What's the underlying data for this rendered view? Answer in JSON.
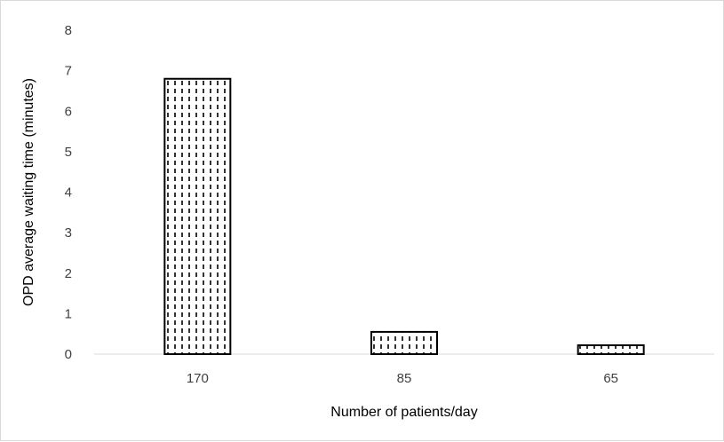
{
  "chart_data": {
    "type": "bar",
    "categories": [
      "170",
      "85",
      "65"
    ],
    "values": [
      6.8,
      0.55,
      0.22
    ],
    "xlabel": "Number of patients/day",
    "ylabel": "OPD average waiting time (minutes)",
    "ylim": [
      0,
      8
    ],
    "yticks": [
      "0",
      "1",
      "2",
      "3",
      "4",
      "5",
      "6",
      "7",
      "8"
    ],
    "grid": false,
    "legend": "none",
    "bar_pattern": "vertical dashed lines",
    "colors": {
      "bar_fill": "#ffffff",
      "bar_stroke": "#000000",
      "axis": "#d9d9d9"
    }
  }
}
